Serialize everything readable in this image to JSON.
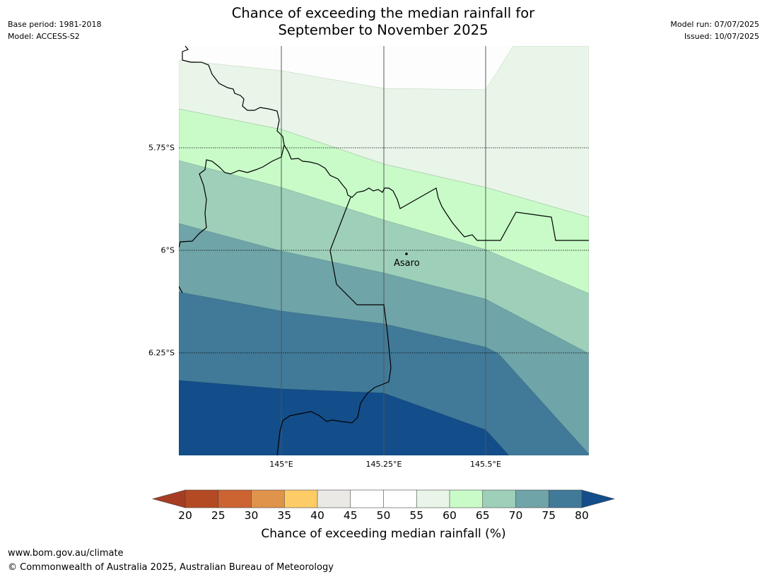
{
  "title_line1": "Chance of exceeding the median rainfall for",
  "title_line2": "September to November 2025",
  "base_period": "Base period: 1981-2018",
  "model": "Model: ACCESS-S2",
  "model_run": "Model run: 07/07/2025",
  "issued": "Issued: 10/07/2025",
  "lat_labels": [
    "5.75°S",
    "6°S",
    "6.25°S"
  ],
  "lon_labels": [
    "145°E",
    "145.25°E",
    "145.5°E"
  ],
  "place_name": "Asaro",
  "colorbar": {
    "ticks": [
      "20",
      "25",
      "30",
      "35",
      "40",
      "45",
      "50",
      "55",
      "60",
      "65",
      "70",
      "75",
      "80"
    ],
    "title": "Chance of exceeding median rainfall (%)",
    "colors": [
      "#a63d22",
      "#b34a24",
      "#cc6432",
      "#e0934a",
      "#fdcc67",
      "#ebe9e5",
      "#ffffff",
      "#ffffff",
      "#e9f5e8",
      "#c8fbc8",
      "#9ecfb9",
      "#6fa4a8",
      "#417a98",
      "#134e8a"
    ]
  },
  "footer_url": "www.bom.gov.au/climate",
  "footer_copyright": "© Commonwealth of Australia 2025, Australian Bureau of Meteorology"
}
